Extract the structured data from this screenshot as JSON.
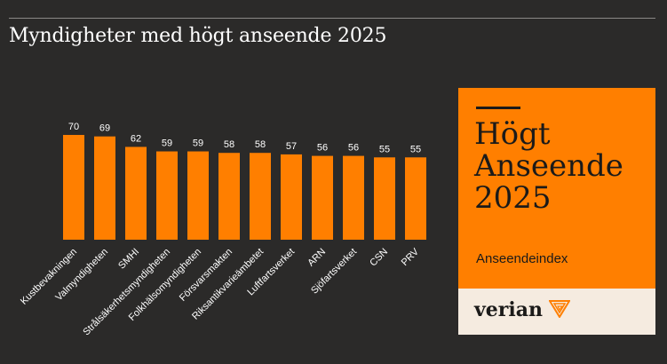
{
  "title": "Myndigheter med högt anseende 2025",
  "chart_data": {
    "type": "bar",
    "categories": [
      "Kustbevakningen",
      "Valmyndigheten",
      "SMHI",
      "Strålsäkerhetsmyndigheten",
      "Folkhälsomyndigheten",
      "Försvarsmakten",
      "Riksantikvarieämbetet",
      "Luftfartsverket",
      "ARN",
      "Sjöfartsverket",
      "CSN",
      "PRV"
    ],
    "values": [
      70,
      69,
      62,
      59,
      59,
      58,
      58,
      57,
      56,
      56,
      55,
      55
    ],
    "ylim": [
      0,
      80
    ],
    "bar_color": "#ff7f00",
    "grid": false,
    "legend": "none"
  },
  "badge": {
    "title_lines": [
      "Högt",
      "Anseende",
      "2025"
    ],
    "subtitle": "Anseendeindex",
    "brand": "verian",
    "accent": "#ff7f00"
  }
}
